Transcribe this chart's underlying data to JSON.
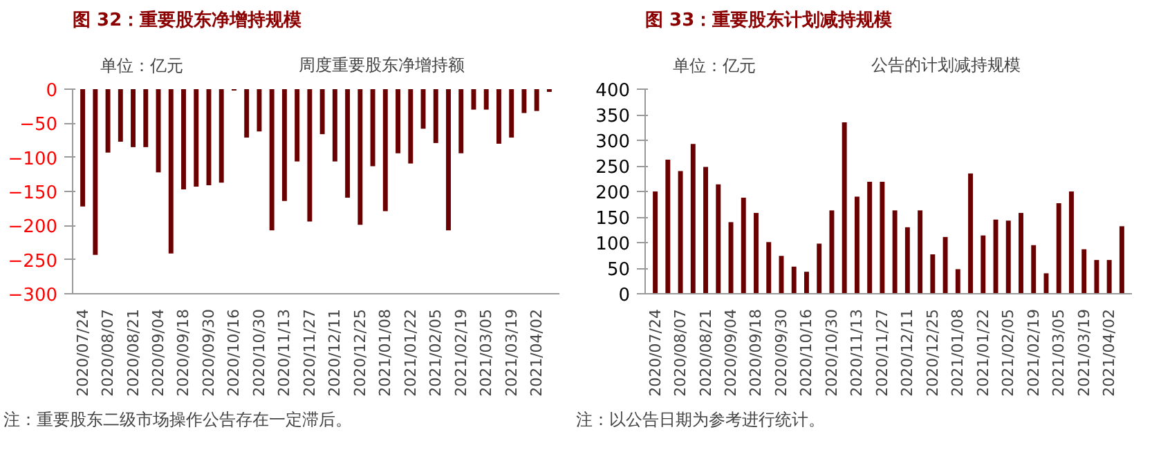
{
  "chart_data": [
    {
      "type": "bar",
      "title": "图 32：重要股东净增持规模",
      "categories": [
        "2020/07/24",
        null,
        "2020/08/07",
        null,
        "2020/08/21",
        null,
        "2020/09/04",
        null,
        "2020/09/18",
        null,
        "2020/09/30",
        null,
        "2020/10/16",
        null,
        "2020/10/30",
        null,
        "2020/11/13",
        null,
        "2020/11/27",
        null,
        "2020/12/11",
        null,
        "2020/12/25",
        null,
        "2021/01/08",
        null,
        "2021/01/22",
        null,
        "2021/02/05",
        null,
        "2021/02/19",
        null,
        "2021/03/05",
        null,
        "2021/03/19",
        null,
        "2021/04/02",
        null
      ],
      "series": [
        {
          "name": "周度重要股东净增持额",
          "color": "#6b0000",
          "values": [
            -172,
            -243,
            -93,
            -77,
            -85,
            -85,
            -122,
            -241,
            -147,
            -143,
            -141,
            -137,
            -2,
            -71,
            -62,
            -207,
            -164,
            -106,
            -194,
            -66,
            -106,
            -159,
            -199,
            -113,
            -179,
            -94,
            -109,
            -58,
            -79,
            -207,
            -94,
            -30,
            -30,
            -80,
            -71,
            -35,
            -32,
            -4
          ]
        }
      ],
      "ylim": [
        -300,
        0
      ],
      "yticks": [
        -300,
        -250,
        -200,
        -150,
        -100,
        -50,
        0
      ],
      "grid": false,
      "legend": "top",
      "annotations": [
        "单位：亿元",
        "注：重要股东二级市场操作公告存在一定滞后。"
      ]
    },
    {
      "type": "bar",
      "title": "图 33：重要股东计划减持规模",
      "categories": [
        "2020/07/24",
        null,
        "2020/08/07",
        null,
        "2020/08/21",
        null,
        "2020/09/04",
        null,
        "2020/09/18",
        null,
        "2020/09/30",
        null,
        "2020/10/16",
        null,
        "2020/10/30",
        null,
        "2020/11/13",
        null,
        "2020/11/27",
        null,
        "2020/12/11",
        null,
        "2020/12/25",
        null,
        "2021/01/08",
        null,
        "2021/01/22",
        null,
        "2021/02/05",
        null,
        "2021/02/19",
        null,
        "2021/03/05",
        null,
        "2021/03/19",
        null,
        "2021/04/02",
        null
      ],
      "series": [
        {
          "name": "公告的计划减持规模",
          "color": "#6b0000",
          "values": [
            200,
            262,
            240,
            293,
            248,
            214,
            140,
            188,
            158,
            101,
            74,
            53,
            43,
            98,
            163,
            335,
            190,
            219,
            219,
            163,
            130,
            163,
            77,
            111,
            48,
            235,
            114,
            145,
            143,
            158,
            95,
            40,
            177,
            200,
            87,
            66,
            66,
            132
          ]
        }
      ],
      "ylim": [
        0,
        400
      ],
      "yticks": [
        0,
        50,
        100,
        150,
        200,
        250,
        300,
        350,
        400
      ],
      "grid": false,
      "legend": "top",
      "annotations": [
        "单位：亿元",
        "注：以公告日期为参考进行统计。"
      ]
    }
  ]
}
